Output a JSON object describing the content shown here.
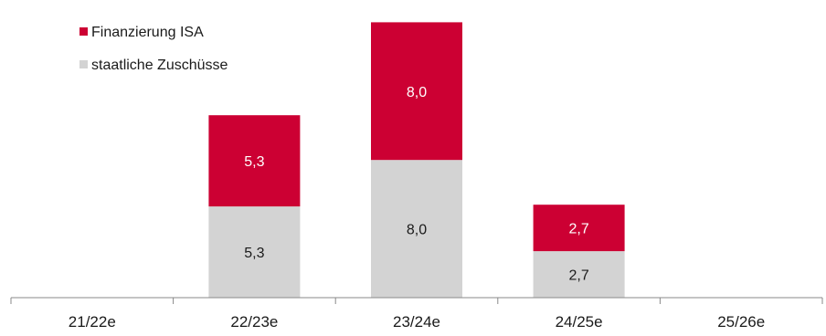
{
  "chart_data": {
    "type": "bar",
    "stacked": true,
    "categories": [
      "21/22e",
      "22/23e",
      "23/24e",
      "24/25e",
      "25/26e"
    ],
    "series": [
      {
        "name": "staatliche Zuschüsse",
        "values": [
          null,
          5.3,
          8.0,
          2.7,
          null
        ],
        "labels": [
          "",
          "5,3",
          "8,0",
          "2,7",
          ""
        ],
        "color": "#d3d3d3",
        "label_color": "#1a1a1a"
      },
      {
        "name": "Finanzierung ISA",
        "values": [
          null,
          5.3,
          8.0,
          2.7,
          null
        ],
        "labels": [
          "",
          "5,3",
          "8,0",
          "2,7",
          ""
        ],
        "color": "#cc0033",
        "label_color": "#ffffff"
      }
    ],
    "legend_position": "top-left",
    "legend_order": [
      1,
      0
    ],
    "ylim": [
      0,
      16.5
    ],
    "grid": false
  }
}
